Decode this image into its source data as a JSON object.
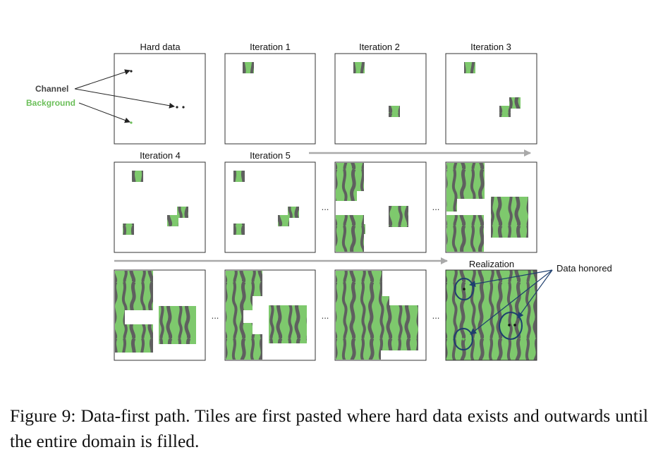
{
  "labels": {
    "hard_data": "Hard data",
    "iter1": "Iteration 1",
    "iter2": "Iteration 2",
    "iter3": "Iteration 3",
    "iter4": "Iteration 4",
    "iter5": "Iteration 5",
    "realization": "Realization",
    "data_honored": "Data honored",
    "channel": "Channel",
    "background": "Background",
    "ellipsis": "..."
  },
  "colors": {
    "tile_green": "#7ec96d",
    "channel_grey": "#5f5f5f",
    "frame": "#333333",
    "arrow_grey": "#a9a9a9",
    "navy": "#1e3f6e",
    "background_label": "#6bbf59",
    "channel_label": "#444444"
  },
  "caption": {
    "text": "Figure 9:  Data-first path.  Tiles are first pasted where hard data exists and outwards until the entire domain is filled."
  }
}
